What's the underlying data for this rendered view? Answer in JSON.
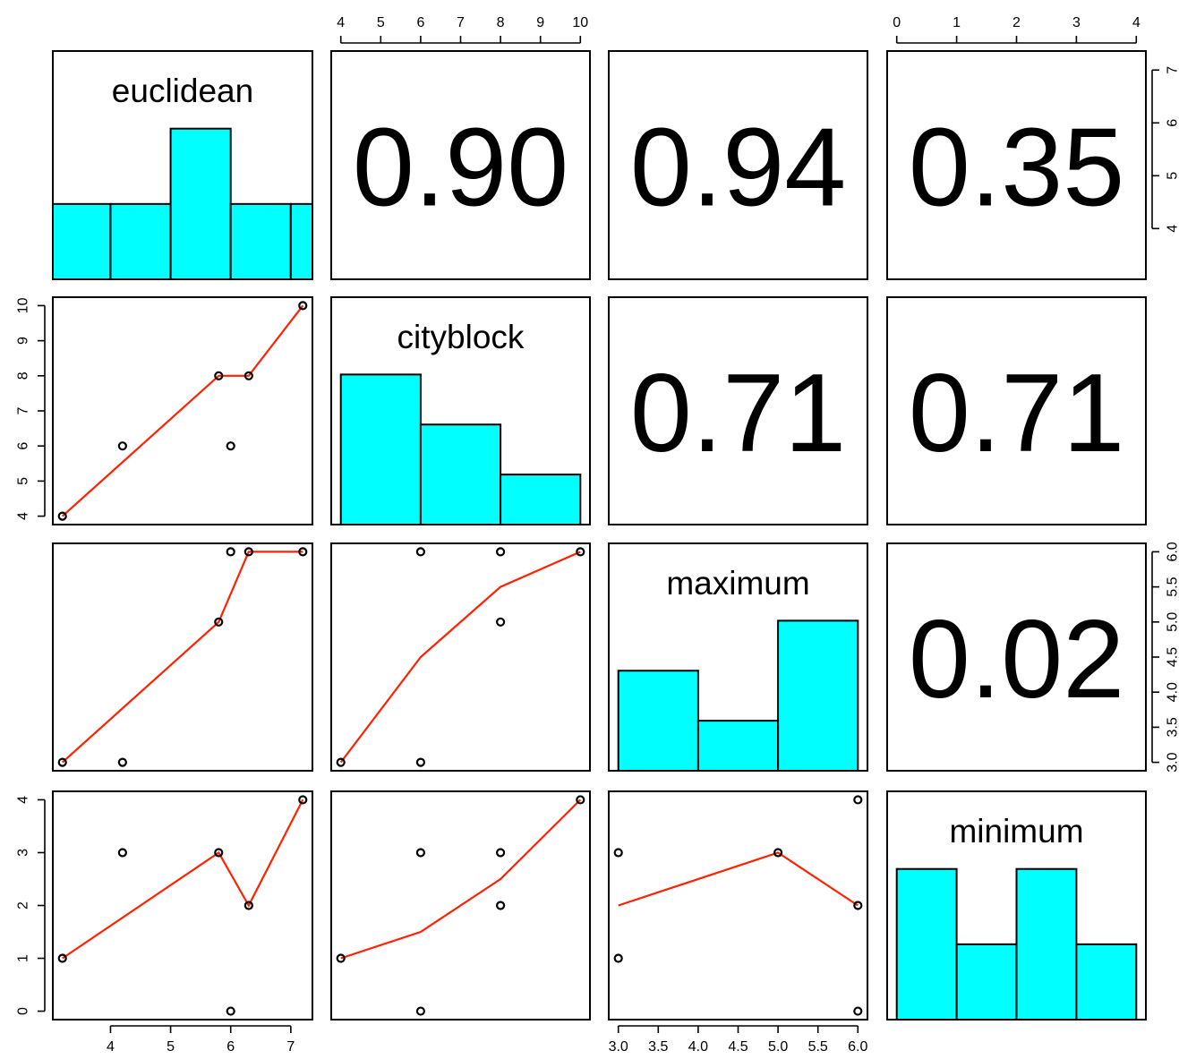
{
  "colors": {
    "hist_fill": "#00FFFF",
    "smooth_line": "#FF2200",
    "points": "#000000",
    "frame": "#000000"
  },
  "chart_data": {
    "type": "scatter-matrix",
    "variables": [
      "euclidean",
      "cityblock",
      "maximum",
      "minimum"
    ],
    "observations": {
      "euclidean": [
        3.2,
        4.2,
        5.8,
        6.0,
        6.3,
        7.2
      ],
      "cityblock": [
        4,
        6,
        8,
        6,
        8,
        10
      ],
      "maximum": [
        3,
        3,
        5,
        6,
        6,
        6
      ],
      "minimum": [
        1,
        3,
        3,
        0,
        2,
        4
      ]
    },
    "axis_ticks": {
      "euclidean": [
        4,
        5,
        6,
        7
      ],
      "cityblock": [
        4,
        5,
        6,
        7,
        8,
        9,
        10
      ],
      "maximum": [
        "3.0",
        "3.5",
        "4.0",
        "4.5",
        "5.0",
        "5.5",
        "6.0"
      ],
      "minimum": [
        0,
        1,
        2,
        3,
        4
      ]
    },
    "axis_ranges": {
      "euclidean": [
        3.2,
        7.2
      ],
      "cityblock": [
        4,
        10
      ],
      "maximum": [
        3,
        6
      ],
      "minimum": [
        0,
        4
      ]
    },
    "correlations": [
      {
        "row": "euclidean",
        "col": "cityblock",
        "label": "0.90"
      },
      {
        "row": "euclidean",
        "col": "maximum",
        "label": "0.94"
      },
      {
        "row": "euclidean",
        "col": "minimum",
        "label": "0.35"
      },
      {
        "row": "cityblock",
        "col": "maximum",
        "label": "0.71"
      },
      {
        "row": "cityblock",
        "col": "minimum",
        "label": "0.71"
      },
      {
        "row": "maximum",
        "col": "minimum",
        "label": "0.02"
      }
    ],
    "histograms": {
      "euclidean": {
        "breaks": [
          3,
          4,
          5,
          6,
          7,
          8
        ],
        "counts": [
          1,
          1,
          2,
          1,
          1
        ]
      },
      "cityblock": {
        "breaks": [
          4,
          6,
          8,
          10
        ],
        "counts": [
          3,
          2,
          1
        ]
      },
      "maximum": {
        "breaks": [
          3,
          4,
          5,
          6
        ],
        "counts": [
          2,
          1,
          3
        ]
      },
      "minimum": {
        "breaks": [
          0,
          1,
          2,
          3,
          4
        ],
        "counts": [
          2,
          1,
          2,
          1
        ]
      }
    },
    "smooth_lines": {
      "cityblock~euclidean": [
        [
          3.2,
          4
        ],
        [
          5.8,
          8
        ],
        [
          6.3,
          8
        ],
        [
          7.2,
          10
        ]
      ],
      "maximum~euclidean": [
        [
          3.2,
          3
        ],
        [
          5.8,
          5
        ],
        [
          6.3,
          6
        ],
        [
          7.2,
          6
        ]
      ],
      "maximum~cityblock": [
        [
          4,
          3
        ],
        [
          6,
          4.5
        ],
        [
          8,
          5.5
        ],
        [
          10,
          6
        ]
      ],
      "minimum~euclidean": [
        [
          3.2,
          1
        ],
        [
          5.8,
          3
        ],
        [
          6.3,
          2
        ],
        [
          7.2,
          4
        ]
      ],
      "minimum~cityblock": [
        [
          4,
          1
        ],
        [
          6,
          1.5
        ],
        [
          8,
          2.5
        ],
        [
          10,
          4
        ]
      ],
      "minimum~maximum": [
        [
          3,
          2
        ],
        [
          5,
          3
        ],
        [
          6,
          2
        ]
      ]
    }
  }
}
